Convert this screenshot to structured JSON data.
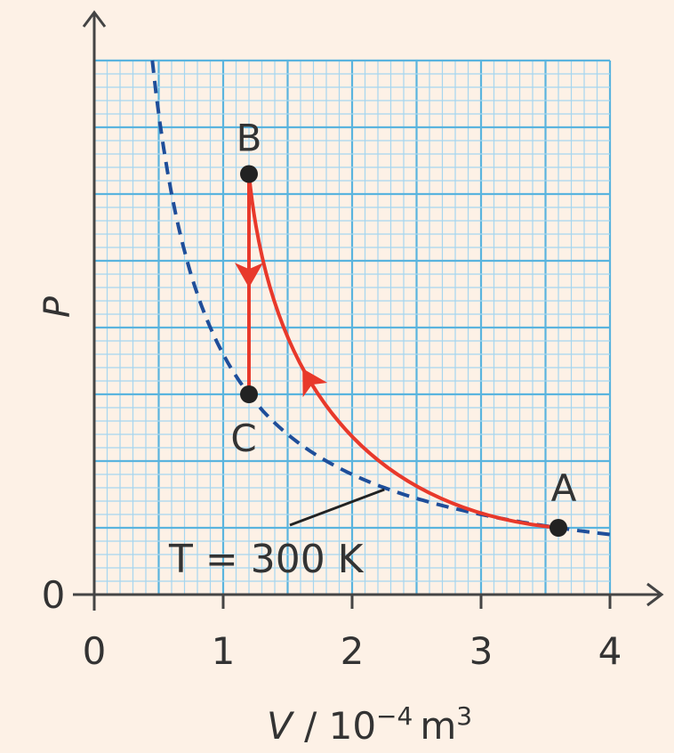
{
  "colors": {
    "background": "#fdf1e6",
    "grid_major": "#5ab4de",
    "grid_minor": "#a6d6ef",
    "isotherm": "#1f4e9a",
    "process": "#e8392b",
    "axis": "#444444",
    "point": "#222222"
  },
  "chart_data": {
    "type": "line",
    "title": "",
    "xlabel_prefix": "V",
    "xlabel_unit": "10",
    "xlabel_exp": "−4",
    "xlabel_unit2": "m",
    "xlabel_exp2": "3",
    "ylabel": "P",
    "xlim": [
      0,
      4
    ],
    "ylim": [
      0,
      8
    ],
    "x_ticks": [
      "0",
      "1",
      "2",
      "3",
      "4"
    ],
    "y_ticks": [
      "0"
    ],
    "y_unlabeled": true,
    "grid": true,
    "points": [
      {
        "label": "A",
        "x": 3.6,
        "y": 1.0
      },
      {
        "label": "B",
        "x": 1.2,
        "y": 6.3
      },
      {
        "label": "C",
        "x": 1.2,
        "y": 3.0
      }
    ],
    "isotherm": {
      "label": "T = 300 K",
      "k": 3.6,
      "x_range": [
        0.45,
        4.0
      ]
    },
    "processes": [
      {
        "from": "A",
        "to": "B",
        "kind": "curve"
      },
      {
        "from": "B",
        "to": "C",
        "kind": "isochoric"
      }
    ]
  }
}
